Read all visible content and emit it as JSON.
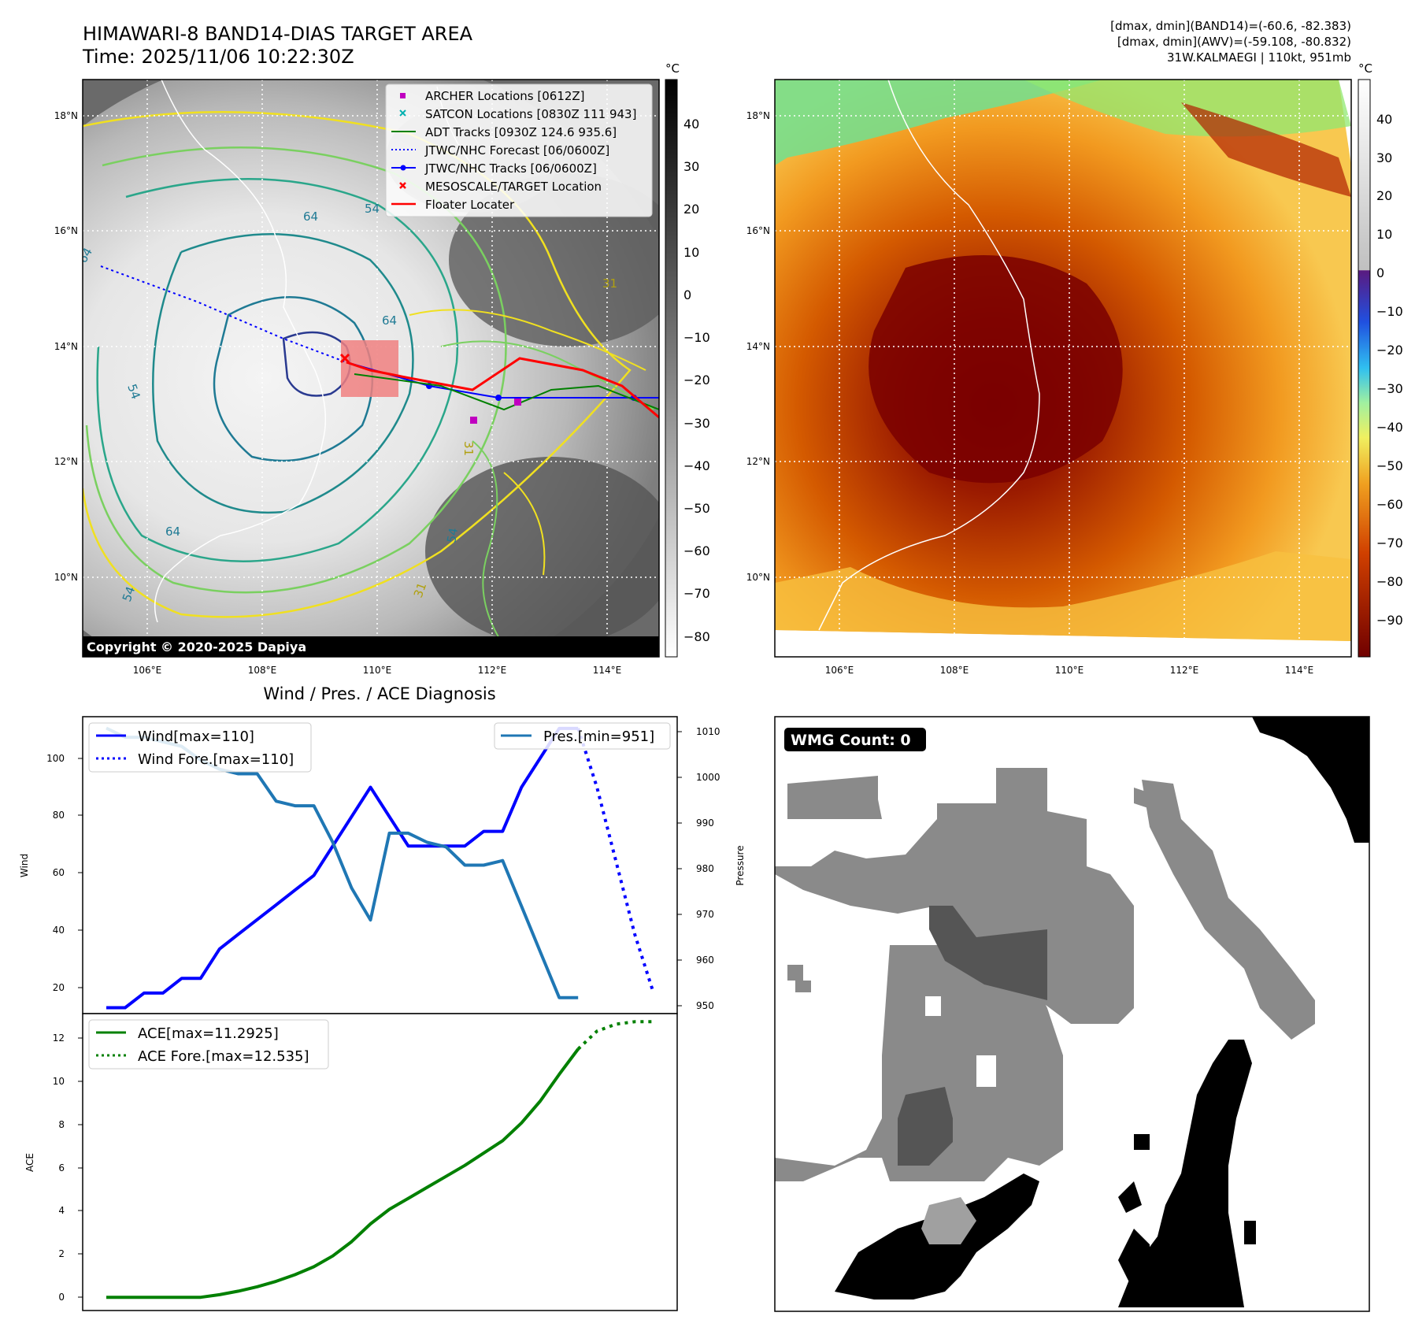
{
  "header": {
    "title": "HIMAWARI-8 BAND14-DIAS TARGET AREA",
    "time": "Time: 2025/11/06 10:22:30Z",
    "info_line1": "[dmax, dmin](BAND14)=(-60.6, -82.383)",
    "info_line2": "[dmax, dmin](AWV)=(-59.108, -80.832)",
    "info_line3": "31W.KALMAEGI | 110kt, 951mb"
  },
  "map": {
    "lat_labels": [
      "18°N",
      "16°N",
      "14°N",
      "12°N",
      "10°N"
    ],
    "lon_labels": [
      "106°E",
      "108°E",
      "110°E",
      "112°E",
      "114°E"
    ],
    "copyright": "Copyright © 2020-2025 Dapiya",
    "contour_labels": [
      "64",
      "64",
      "64",
      "54",
      "64",
      "54",
      "54",
      "31",
      "54",
      "31",
      "31"
    ],
    "legend": [
      {
        "label": "ARCHER Locations [0612Z]",
        "color": "#c000c0",
        "marker": "square"
      },
      {
        "label": "SATCON Locations [0830Z 111 943]",
        "color": "#00b0b0",
        "marker": "x"
      },
      {
        "label": "ADT Tracks [0930Z 124.6 935.6]",
        "color": "#008000",
        "marker": "line"
      },
      {
        "label": "JTWC/NHC Forecast [06/0600Z]",
        "color": "#0000ff",
        "marker": "dotted"
      },
      {
        "label": "JTWC/NHC Tracks [06/0600Z]",
        "color": "#0000ff",
        "marker": "dotline"
      },
      {
        "label": "MESOSCALE/TARGET Location",
        "color": "#ff0000",
        "marker": "x"
      },
      {
        "label": "Floater Locater",
        "color": "#ff0000",
        "marker": "line"
      }
    ]
  },
  "colorbar_left": {
    "unit": "°C",
    "ticks": [
      "40",
      "30",
      "20",
      "10",
      "0",
      "−10",
      "−20",
      "−30",
      "−40",
      "−50",
      "−60",
      "−70",
      "−80"
    ]
  },
  "colorbar_right": {
    "unit": "°C",
    "ticks": [
      "40",
      "30",
      "20",
      "10",
      "0",
      "−10",
      "−20",
      "−30",
      "−40",
      "−50",
      "−60",
      "−70",
      "−80",
      "−90"
    ]
  },
  "diagnosis": {
    "title": "Wind / Pres. / ACE Diagnosis",
    "wind_ylabel": "Wind",
    "pressure_ylabel": "Pressure",
    "ace_ylabel": "ACE",
    "wind_ticks": [
      "20",
      "40",
      "60",
      "80",
      "100"
    ],
    "pressure_ticks": [
      "950",
      "960",
      "970",
      "980",
      "990",
      "1000",
      "1010"
    ],
    "ace_ticks": [
      "0",
      "2",
      "4",
      "6",
      "8",
      "10",
      "12"
    ],
    "wmg_label": "WMG Count: 0"
  },
  "chart_data": [
    {
      "type": "line",
      "title": "Wind / Pres. / ACE Diagnosis",
      "ylabel": "Wind",
      "ylim": [
        13,
        114
      ],
      "x_index_range": [
        -1.25,
        30.25
      ],
      "series": [
        {
          "name": "Wind[max=110]",
          "color": "#0000ff",
          "style": "solid",
          "x": [
            0,
            1,
            2,
            3,
            4,
            5,
            6,
            7,
            8,
            9,
            10,
            11,
            12,
            13,
            14,
            15,
            16,
            17,
            18,
            19,
            20,
            21,
            22,
            23,
            24,
            25
          ],
          "values": [
            15,
            15,
            20,
            20,
            25,
            25,
            35,
            40,
            45,
            50,
            55,
            60,
            70,
            80,
            90,
            80,
            70,
            70,
            70,
            70,
            75,
            75,
            90,
            100,
            110,
            110
          ]
        },
        {
          "name": "Wind Fore.[max=110]",
          "color": "#0000ff",
          "style": "dotted",
          "x": [
            25,
            26,
            27,
            28,
            29
          ],
          "values": [
            110,
            90,
            65,
            40,
            20
          ]
        },
        {
          "name": "Pres.[min=951]",
          "color": "#1f77b4",
          "style": "solid",
          "axis": "right",
          "ylim": [
            947.5,
            1012.5
          ],
          "x": [
            0,
            1,
            2,
            3,
            4,
            5,
            6,
            7,
            8,
            9,
            10,
            11,
            12,
            13,
            14,
            15,
            16,
            17,
            18,
            19,
            20,
            21,
            22,
            23,
            24,
            25
          ],
          "values": [
            1010,
            1008,
            1008,
            1007,
            1006,
            1003,
            1001,
            1000,
            1000,
            994,
            993,
            993,
            985,
            975,
            968,
            987,
            987,
            985,
            984,
            980,
            980,
            981,
            971,
            961,
            951,
            951
          ]
        }
      ]
    },
    {
      "type": "line",
      "ylabel": "ACE",
      "ylim": [
        -0.6,
        12.9
      ],
      "x_index_range": [
        -1.25,
        30.25
      ],
      "series": [
        {
          "name": "ACE[max=11.2925]",
          "color": "#008000",
          "style": "solid",
          "x": [
            0,
            1,
            2,
            3,
            4,
            5,
            6,
            7,
            8,
            9,
            10,
            11,
            12,
            13,
            14,
            15,
            16,
            17,
            18,
            19,
            20,
            21,
            22,
            23,
            24,
            25
          ],
          "values": [
            0,
            0,
            0,
            0,
            0,
            0,
            0.12,
            0.28,
            0.48,
            0.73,
            1.03,
            1.39,
            1.88,
            2.53,
            3.34,
            4.0,
            4.5,
            5.0,
            5.5,
            6.0,
            6.56,
            7.12,
            7.93,
            8.93,
            10.14,
            11.29
          ]
        },
        {
          "name": "ACE Fore.[max=12.535]",
          "color": "#008000",
          "style": "dotted",
          "x": [
            25,
            26,
            27,
            28,
            29
          ],
          "values": [
            11.29,
            12.1,
            12.42,
            12.53,
            12.535
          ]
        }
      ]
    }
  ]
}
